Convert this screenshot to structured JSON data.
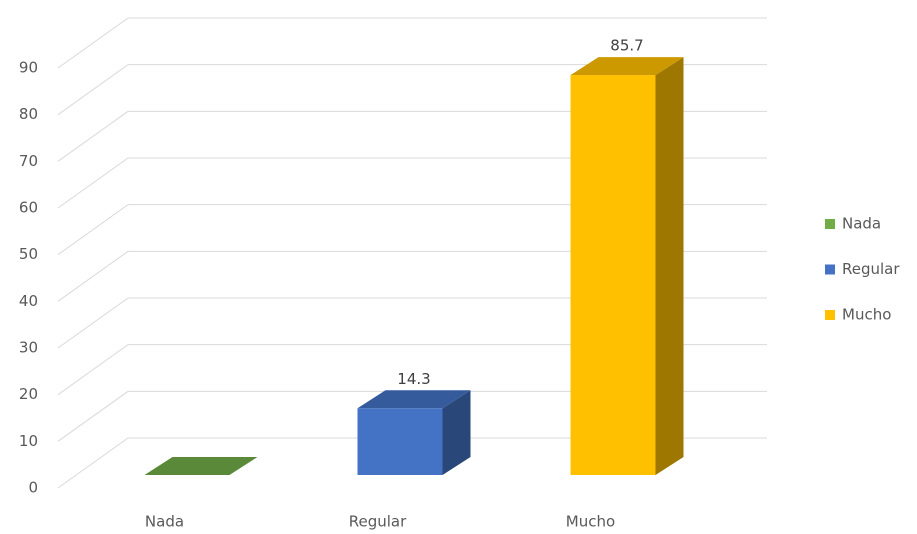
{
  "chart_data": {
    "type": "bar3d",
    "categories": [
      "Nada",
      "Regular",
      "Mucho"
    ],
    "values": [
      0,
      14.3,
      85.7
    ],
    "colors": [
      "#70ad47",
      "#4472c4",
      "#ffc000"
    ],
    "ylim": [
      0,
      90
    ],
    "yticks": [
      0,
      10,
      20,
      30,
      40,
      50,
      60,
      70,
      80,
      90
    ],
    "grid": true,
    "legend": "right"
  }
}
